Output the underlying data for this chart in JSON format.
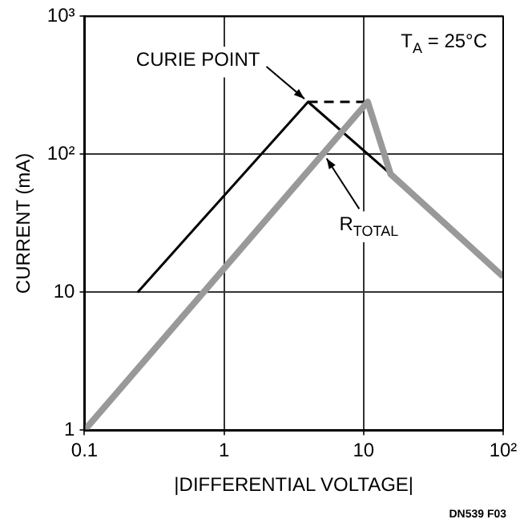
{
  "chart_data": {
    "type": "line",
    "xlabel": "|DIFFERENTIAL VOLTAGE|",
    "ylabel": "CURRENT (mA)",
    "log": "xy",
    "xlim": [
      0.1,
      100
    ],
    "ylim": [
      1,
      1000
    ],
    "xticks": [
      {
        "value": 0.1,
        "label": "0.1"
      },
      1,
      10,
      {
        "value": 100,
        "label": "10²"
      }
    ],
    "yticks": [
      1,
      10,
      {
        "value": 100,
        "label": "10²"
      },
      {
        "value": 1000,
        "label": "10³"
      }
    ],
    "grid": true,
    "legend": false,
    "marker": "none",
    "series": [
      {
        "color": "#000000",
        "x": [
          0.24,
          4,
          15.6,
          100
        ],
        "values": [
          10,
          240,
          72,
          13
        ]
      },
      {
        "color": "#000000",
        "x": [
          4,
          10.7
        ],
        "values": [
          240,
          240
        ],
        "line_style": "dashed"
      },
      {
        "color": "#999999",
        "x": [
          0.1,
          10.7,
          15.6,
          100
        ],
        "values": [
          1,
          240,
          72,
          13
        ]
      }
    ],
    "annotations": [
      {
        "text": "CURIE POINT",
        "x": 4,
        "y": 240
      },
      {
        "text": "R$_{TOTAL}$",
        "x": 5.2,
        "y": 100
      },
      "T$_{A}$ = 25°C",
      "DN539 F03"
    ]
  }
}
